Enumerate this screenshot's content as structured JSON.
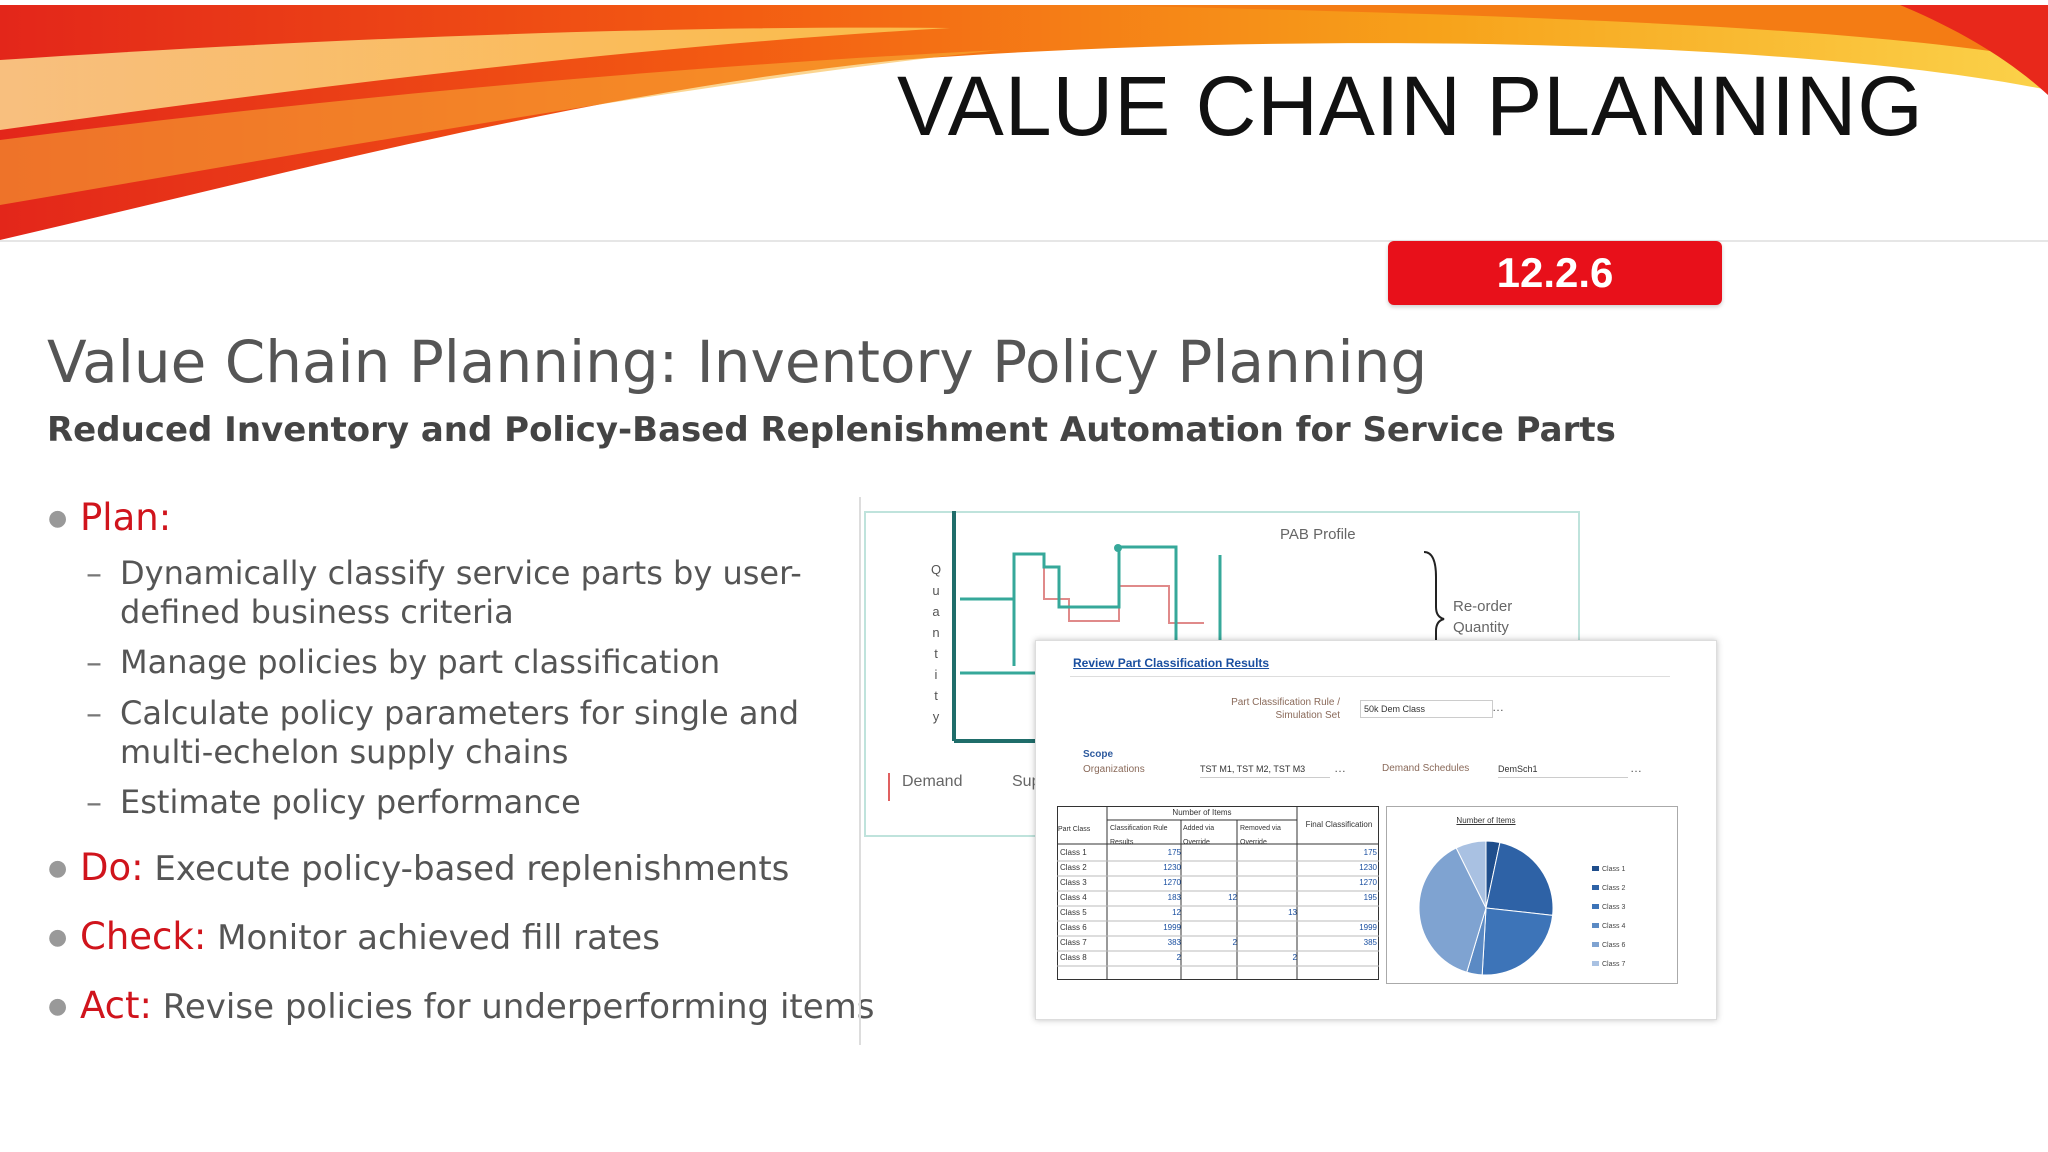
{
  "slide": {
    "title": "VALUE CHAIN PLANNING",
    "version": "12.2.6",
    "heading": "Value Chain Planning: Inventory Policy Planning",
    "subheading": "Reduced Inventory and Policy-Based Replenishment Automation for Service Parts"
  },
  "bullets": {
    "plan": {
      "keyword": "Plan:",
      "items": [
        {
          "line1": "Dynamically classify service parts by user-",
          "line2": "defined business criteria"
        },
        {
          "line1": "Manage policies by part classification"
        },
        {
          "line1": "Calculate policy parameters for single and",
          "line2": "multi-echelon supply chains"
        },
        {
          "line1": "Estimate policy performance"
        }
      ]
    },
    "do": {
      "keyword": "Do:",
      "text": "Execute policy-based replenishments"
    },
    "check": {
      "keyword": "Check:",
      "text": "Monitor achieved fill rates"
    },
    "act": {
      "keyword": "Act:",
      "text": "Revise policies for underperforming items"
    }
  },
  "chart_panel": {
    "pab_profile": "PAB Profile",
    "reorder_line1": "Re-order",
    "reorder_line2": "Quantity",
    "y_letters": [
      "Q",
      "u",
      "a",
      "n",
      "t",
      "i",
      "t",
      "y"
    ],
    "demand_label": "Demand",
    "sup_label": "Sup"
  },
  "review_panel": {
    "link": "Review Part Classification Results",
    "rule_label_1": "Part Classification Rule /",
    "rule_label_2": "Simulation Set",
    "rule_value": "50k Dem Class",
    "scope_label": "Scope",
    "org_label": "Organizations",
    "org_value": "TST M1, TST M2, TST M3",
    "demand_schedule_label": "Demand Schedules",
    "demand_schedule_value": "DemSch1",
    "table": {
      "group_header": "Number of Items",
      "columns": [
        "Part Class",
        "Classification Rule Results",
        "Added via Override",
        "Removed via Override",
        "Final Classification"
      ],
      "rows": [
        [
          "Class 1",
          "175",
          "",
          "",
          "175"
        ],
        [
          "Class 2",
          "1230",
          "",
          "",
          "1230"
        ],
        [
          "Class 3",
          "1270",
          "",
          "",
          "1270"
        ],
        [
          "Class 4",
          "183",
          "12",
          "",
          "195"
        ],
        [
          "Class 5",
          "12",
          "",
          "13",
          ""
        ],
        [
          "Class 6",
          "1999",
          "",
          "",
          "1999"
        ],
        [
          "Class 7",
          "383",
          "2",
          "",
          "385"
        ],
        [
          "Class 8",
          "2",
          "",
          "2",
          ""
        ]
      ]
    },
    "pie": {
      "title": "Number of Items",
      "legend": [
        "Class 1",
        "Class 2",
        "Class 3",
        "Class 4",
        "Class 6",
        "Class 7"
      ],
      "values": [
        175,
        1230,
        1270,
        195,
        1999,
        385
      ],
      "colors": [
        "#1f4e8c",
        "#2e62a6",
        "#3d74b8",
        "#5b8ac4",
        "#7fa3d1",
        "#a9c1e2"
      ]
    }
  }
}
